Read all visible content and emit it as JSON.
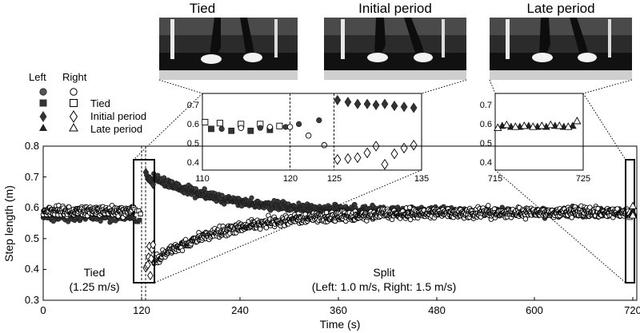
{
  "chart_data": {
    "type": "scatter",
    "xlabel": "Time (s)",
    "ylabel": "Step length (m)",
    "xlim": [
      0,
      725
    ],
    "ylim": [
      0.3,
      0.8
    ],
    "xticks": [
      0,
      120,
      240,
      360,
      480,
      600,
      720
    ],
    "yticks": [
      0.3,
      0.4,
      0.5,
      0.6,
      0.7,
      0.8
    ],
    "split_start_s": 120,
    "legend": {
      "header_left": "Left",
      "header_right": "Right",
      "rows": [
        {
          "left_marker": "filled-circle",
          "right_marker": "open-circle",
          "label": ""
        },
        {
          "left_marker": "filled-square",
          "right_marker": "open-square",
          "label": "Tied"
        },
        {
          "left_marker": "filled-diamond",
          "right_marker": "open-diamond",
          "label": "Initial period"
        },
        {
          "left_marker": "filled-triangle",
          "right_marker": "open-triangle",
          "label": "Late period"
        }
      ]
    },
    "annotations": {
      "tied_title": "Tied",
      "tied_speed": "(1.25 m/s)",
      "split_title": "Split",
      "split_speed": "(Left: 1.0 m/s, Right: 1.5 m/s)"
    },
    "highlight_windows": [
      {
        "x": [
          110,
          135
        ],
        "y": [
          0.35,
          0.75
        ]
      },
      {
        "x": [
          715,
          725
        ],
        "y": [
          0.35,
          0.75
        ]
      }
    ],
    "photos": [
      {
        "title": "Tied"
      },
      {
        "title": "Initial period"
      },
      {
        "title": "Late period"
      }
    ],
    "main_series": [
      {
        "name": "Left (tied)",
        "leg": "left",
        "t_range": [
          0,
          120
        ],
        "mean": 0.575,
        "noise_sd": 0.018
      },
      {
        "name": "Right (tied)",
        "leg": "right",
        "t_range": [
          0,
          120
        ],
        "mean": 0.59,
        "noise_sd": 0.018
      },
      {
        "name": "Left (split)",
        "leg": "left",
        "t_range": [
          120,
          725
        ],
        "start": 0.72,
        "end": 0.585,
        "tau_s": 90,
        "noise_sd": 0.016
      },
      {
        "name": "Right (split)",
        "leg": "right",
        "t_range": [
          120,
          725
        ],
        "start": 0.4,
        "end": 0.585,
        "tau_s": 90,
        "noise_sd": 0.018
      }
    ],
    "inset_tied_initial": {
      "xlim": [
        110,
        135
      ],
      "ylim": [
        0.35,
        0.75
      ],
      "xticks": [
        110,
        120,
        125,
        135
      ],
      "yticks": [
        0.4,
        0.5,
        0.6,
        0.7
      ],
      "dashed_x": [
        120,
        125
      ],
      "tied_left_squares": {
        "x": [
          111.0,
          113.3,
          115.5,
          117.7
        ],
        "y": [
          0.565,
          0.555,
          0.555,
          0.56
        ]
      },
      "tied_right_squares": {
        "x": [
          110.3,
          112.0,
          114.4,
          116.6,
          118.8
        ],
        "y": [
          0.6,
          0.595,
          0.59,
          0.59,
          0.58
        ]
      },
      "left_circles": {
        "x": [
          112.2,
          116.6,
          119.5,
          121.0,
          123.3
        ],
        "y": [
          0.565,
          0.57,
          0.575,
          0.59,
          0.61
        ]
      },
      "right_circles": {
        "x": [
          114.4,
          117.7,
          120.0,
          122.1,
          123.9
        ],
        "y": [
          0.57,
          0.575,
          0.575,
          0.53,
          0.48
        ]
      },
      "left_diamonds": {
        "x": [
          125.4,
          126.6,
          127.7,
          128.8,
          129.8,
          130.8,
          131.9,
          133.0,
          134.1
        ],
        "y": [
          0.715,
          0.705,
          0.695,
          0.695,
          0.69,
          0.695,
          0.685,
          0.68,
          0.675
        ]
      },
      "right_diamonds": {
        "x": [
          125.4,
          126.6,
          127.7,
          128.8,
          129.8,
          130.8,
          131.9,
          133.0,
          134.1
        ],
        "y": [
          0.405,
          0.41,
          0.415,
          0.44,
          0.475,
          0.38,
          0.435,
          0.465,
          0.48
        ]
      }
    },
    "inset_late": {
      "xlim": [
        715,
        725
      ],
      "ylim": [
        0.35,
        0.75
      ],
      "xticks": [
        715,
        725
      ],
      "yticks": [
        0.4,
        0.5,
        0.6,
        0.7
      ],
      "left_triangles": {
        "x": [
          715.8,
          716.8,
          717.8,
          718.8,
          719.8,
          720.8,
          721.8,
          722.8,
          723.8
        ],
        "y": [
          0.58,
          0.575,
          0.575,
          0.58,
          0.575,
          0.575,
          0.58,
          0.575,
          0.58
        ]
      },
      "right_triangles": {
        "x": [
          715.3,
          716.3,
          717.3,
          718.3,
          719.3,
          720.3,
          721.3,
          722.3,
          723.3,
          724.3
        ],
        "y": [
          0.57,
          0.585,
          0.575,
          0.58,
          0.575,
          0.58,
          0.585,
          0.58,
          0.575,
          0.605
        ]
      }
    }
  }
}
